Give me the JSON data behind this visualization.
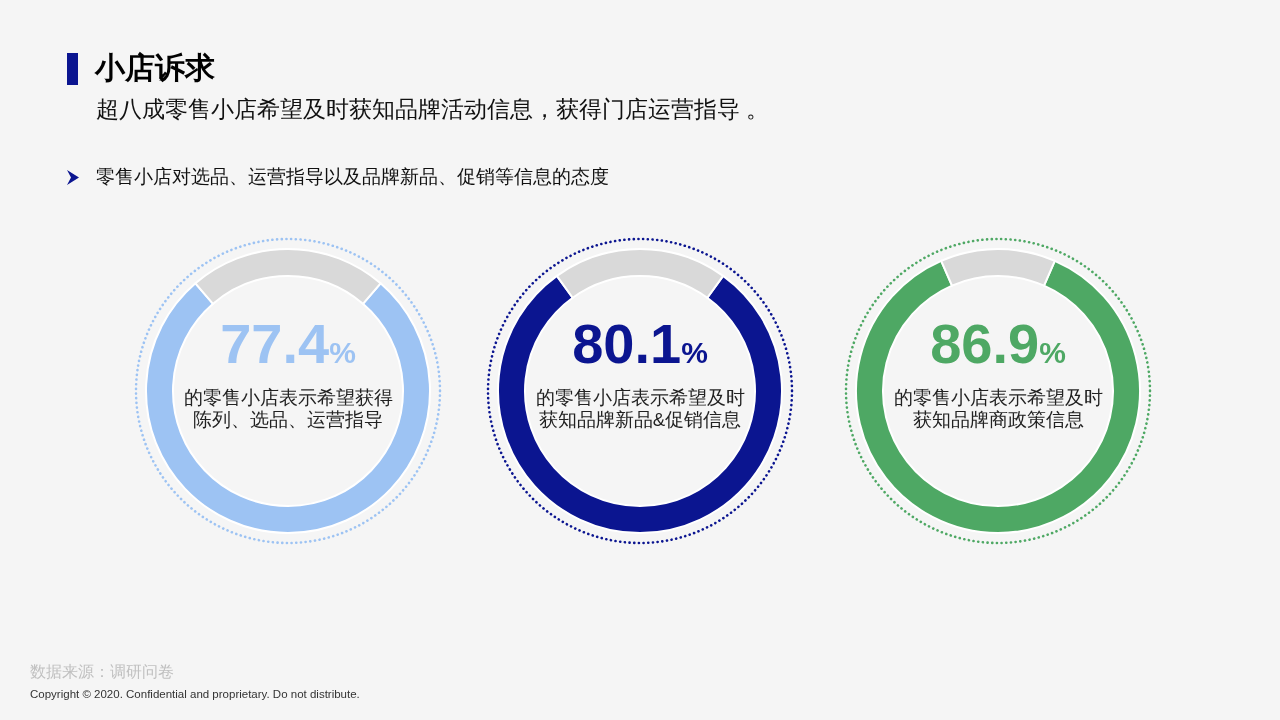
{
  "chart_data": [
    {
      "type": "other",
      "title": "小店诉求",
      "subtitle": "超八成零售小店希望及时获知品牌活动信息，获得门店运营指导 。",
      "annotations": [
        "零售小店对选品、运营指导以及品牌新品、促销等信息的态度",
        "数据来源：调研问卷",
        "Copyright © 2020. Confidential and proprietary. Do not distribute."
      ]
    },
    {
      "type": "donut",
      "title": "77.4%",
      "subtitle": "的零售小店表示希望获得陈列、选品、运营指导",
      "categories": [
        null,
        null
      ],
      "values": [
        77.4,
        22.6
      ],
      "colors": [
        "#9dc3f3",
        "#d9d9d9"
      ]
    },
    {
      "type": "donut",
      "title": "80.1%",
      "subtitle": "的零售小店表示希望及时获知品牌新品&促销信息",
      "categories": [
        null,
        null
      ],
      "values": [
        80.1,
        19.9
      ],
      "colors": [
        "#0b1590",
        "#d9d9d9"
      ]
    },
    {
      "type": "donut",
      "title": "86.9%",
      "subtitle": "的零售小店表示希望及时获知品牌商政策信息",
      "categories": [
        null,
        null
      ],
      "values": [
        86.9,
        13.1
      ],
      "colors": [
        "#4ea864",
        "#d9d9d9"
      ]
    }
  ]
}
